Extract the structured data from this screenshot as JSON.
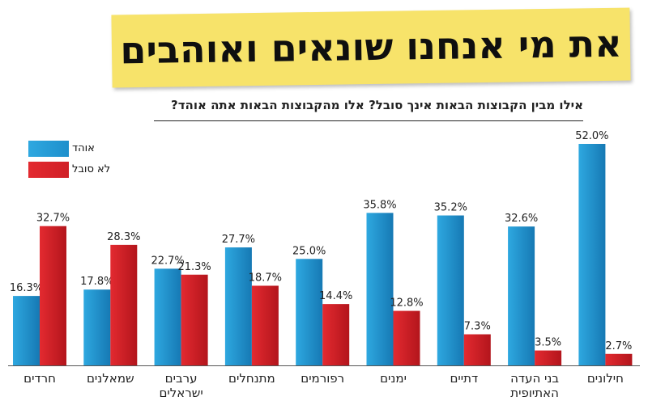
{
  "title": "את מי אנחנו שונאים ואוהבים",
  "subtitle": "אילו מבין הקבוצות הבאות אינך סובל? אלו מהקבוצות הבאות אתה אוהד?",
  "colors": {
    "love": "#1e8fcc",
    "hate": "#d01f26",
    "banner": "#f7e36a"
  },
  "chart_data": {
    "type": "bar",
    "categories": [
      [
        "חרדים"
      ],
      [
        "שמאלנים"
      ],
      [
        "ערבים",
        "ישראלים"
      ],
      [
        "מתנחלים"
      ],
      [
        "רפורמים"
      ],
      [
        "ימנים"
      ],
      [
        "דתיים"
      ],
      [
        "בני העדה",
        "האתיופית"
      ],
      [
        "חילונים"
      ]
    ],
    "series": [
      {
        "name": "אוהד",
        "values": [
          16.3,
          17.8,
          22.7,
          27.7,
          25.0,
          35.8,
          35.2,
          32.6,
          52.0
        ]
      },
      {
        "name": "לא סובל",
        "values": [
          32.7,
          28.3,
          21.3,
          18.7,
          14.4,
          12.8,
          7.3,
          3.5,
          2.7
        ]
      }
    ],
    "value_labels": [
      [
        "16.3%",
        "17.8%",
        "22.7%",
        "27.7%",
        "25.0%",
        "35.8%",
        "35.2%",
        "32.6%",
        "52.0%"
      ],
      [
        "32.7%",
        "28.3%",
        "21.3%",
        "18.7%",
        "14.4%",
        "12.8%",
        "7.3%",
        "3.5%",
        "2.7%"
      ]
    ],
    "ylim": [
      0,
      55
    ],
    "legend_position": "top-left",
    "grid": false
  }
}
